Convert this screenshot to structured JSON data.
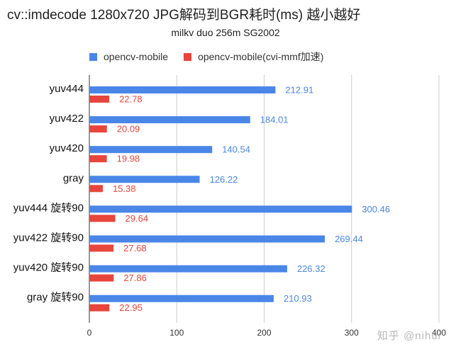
{
  "chart_data": {
    "type": "bar",
    "orientation": "horizontal",
    "title": "cv::imdecode 1280x720 JPG解码到BGR耗时(ms) 越小越好",
    "subtitle": "milkv duo 256m SG2002",
    "categories": [
      "yuv444",
      "yuv422",
      "yuv420",
      "gray",
      "yuv444 旋转90",
      "yuv422 旋转90",
      "yuv420 旋转90",
      "gray 旋转90"
    ],
    "series": [
      {
        "name": "opencv-mobile",
        "color": "#4a86e8",
        "values": [
          212.91,
          184.01,
          140.54,
          126.22,
          300.46,
          269.44,
          226.32,
          210.93
        ],
        "labels": [
          "212.91",
          "184.01",
          "140.54",
          "126.22",
          "300.46",
          "269.44",
          "226.32",
          "210.93"
        ]
      },
      {
        "name": "opencv-mobile(cvi-mmf加速)",
        "color": "#e8453c",
        "values": [
          22.78,
          20.09,
          19.98,
          15.38,
          29.64,
          27.68,
          27.86,
          22.95
        ],
        "labels": [
          "22.78",
          "20.09",
          "19.98",
          "15.38",
          "29.64",
          "27.68",
          "27.86",
          "22.95"
        ]
      }
    ],
    "xlim": [
      0,
      400
    ],
    "xticks": [
      0,
      100,
      200,
      300,
      400
    ],
    "grid": true,
    "legend_position": "top"
  },
  "watermark": "知乎 @nihui"
}
